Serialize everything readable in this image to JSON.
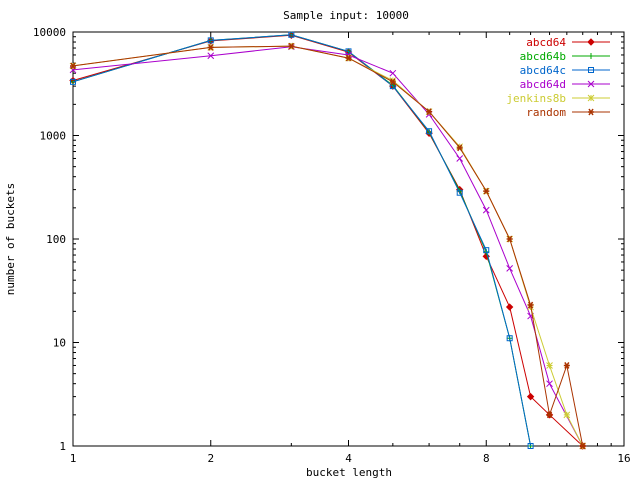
{
  "chart_data": {
    "type": "line",
    "title": "Sample input: 10000",
    "xlabel": "bucket length",
    "ylabel": "number of buckets",
    "x_scale": "log2",
    "y_scale": "log10",
    "xlim": [
      1,
      16
    ],
    "ylim": [
      1,
      10000
    ],
    "x_ticks": [
      1,
      2,
      4,
      8,
      16
    ],
    "y_ticks": [
      1,
      10,
      100,
      1000,
      10000
    ],
    "x_tick_labels": [
      "1",
      "2",
      "4",
      "8",
      "16"
    ],
    "y_tick_labels": [
      "1",
      "10",
      "100",
      "1000",
      "10000"
    ],
    "grid": false,
    "legend_position": "top-right",
    "series": [
      {
        "name": "abcd64",
        "color": "#cc0000",
        "marker": "diamond",
        "points": [
          [
            1,
            3400
          ],
          [
            2,
            8200
          ],
          [
            3,
            9300
          ],
          [
            4,
            6400
          ],
          [
            5,
            3000
          ],
          [
            6,
            1050
          ],
          [
            7,
            300
          ],
          [
            8,
            68
          ],
          [
            9,
            22
          ],
          [
            10,
            3
          ],
          [
            11,
            2
          ],
          [
            13,
            1
          ]
        ]
      },
      {
        "name": "abcd64b",
        "color": "#00aa00",
        "marker": "plus",
        "points": [
          [
            1,
            3300
          ],
          [
            2,
            8300
          ],
          [
            3,
            9400
          ],
          [
            4,
            6500
          ],
          [
            5,
            3050
          ],
          [
            6,
            1080
          ],
          [
            7,
            290
          ],
          [
            8,
            75
          ],
          [
            9,
            11
          ],
          [
            10,
            1
          ]
        ]
      },
      {
        "name": "abcd64c",
        "color": "#0066cc",
        "marker": "square",
        "points": [
          [
            1,
            3300
          ],
          [
            2,
            8300
          ],
          [
            3,
            9400
          ],
          [
            4,
            6500
          ],
          [
            5,
            3000
          ],
          [
            6,
            1100
          ],
          [
            7,
            280
          ],
          [
            8,
            78
          ],
          [
            9,
            11
          ],
          [
            10,
            1
          ]
        ]
      },
      {
        "name": "abcd64d",
        "color": "#aa00cc",
        "marker": "x",
        "points": [
          [
            1,
            4300
          ],
          [
            2,
            5900
          ],
          [
            3,
            7200
          ],
          [
            4,
            6000
          ],
          [
            5,
            4000
          ],
          [
            6,
            1600
          ],
          [
            7,
            600
          ],
          [
            8,
            190
          ],
          [
            9,
            52
          ],
          [
            10,
            18
          ],
          [
            11,
            4
          ],
          [
            13,
            1
          ]
        ]
      },
      {
        "name": "jenkins8b",
        "color": "#cccc33",
        "marker": "star",
        "points": [
          [
            1,
            4700
          ],
          [
            2,
            7100
          ],
          [
            3,
            7300
          ],
          [
            4,
            5600
          ],
          [
            5,
            3400
          ],
          [
            6,
            1700
          ],
          [
            7,
            780
          ],
          [
            8,
            290
          ],
          [
            9,
            100
          ],
          [
            10,
            22
          ],
          [
            11,
            6
          ],
          [
            12,
            2
          ],
          [
            13,
            1
          ]
        ]
      },
      {
        "name": "random",
        "color": "#aa3300",
        "marker": "asterisk",
        "points": [
          [
            1,
            4700
          ],
          [
            2,
            7100
          ],
          [
            3,
            7300
          ],
          [
            4,
            5600
          ],
          [
            5,
            3300
          ],
          [
            6,
            1700
          ],
          [
            7,
            760
          ],
          [
            8,
            290
          ],
          [
            9,
            100
          ],
          [
            10,
            23
          ],
          [
            11,
            2
          ],
          [
            12,
            6
          ],
          [
            13,
            1
          ]
        ]
      }
    ]
  }
}
